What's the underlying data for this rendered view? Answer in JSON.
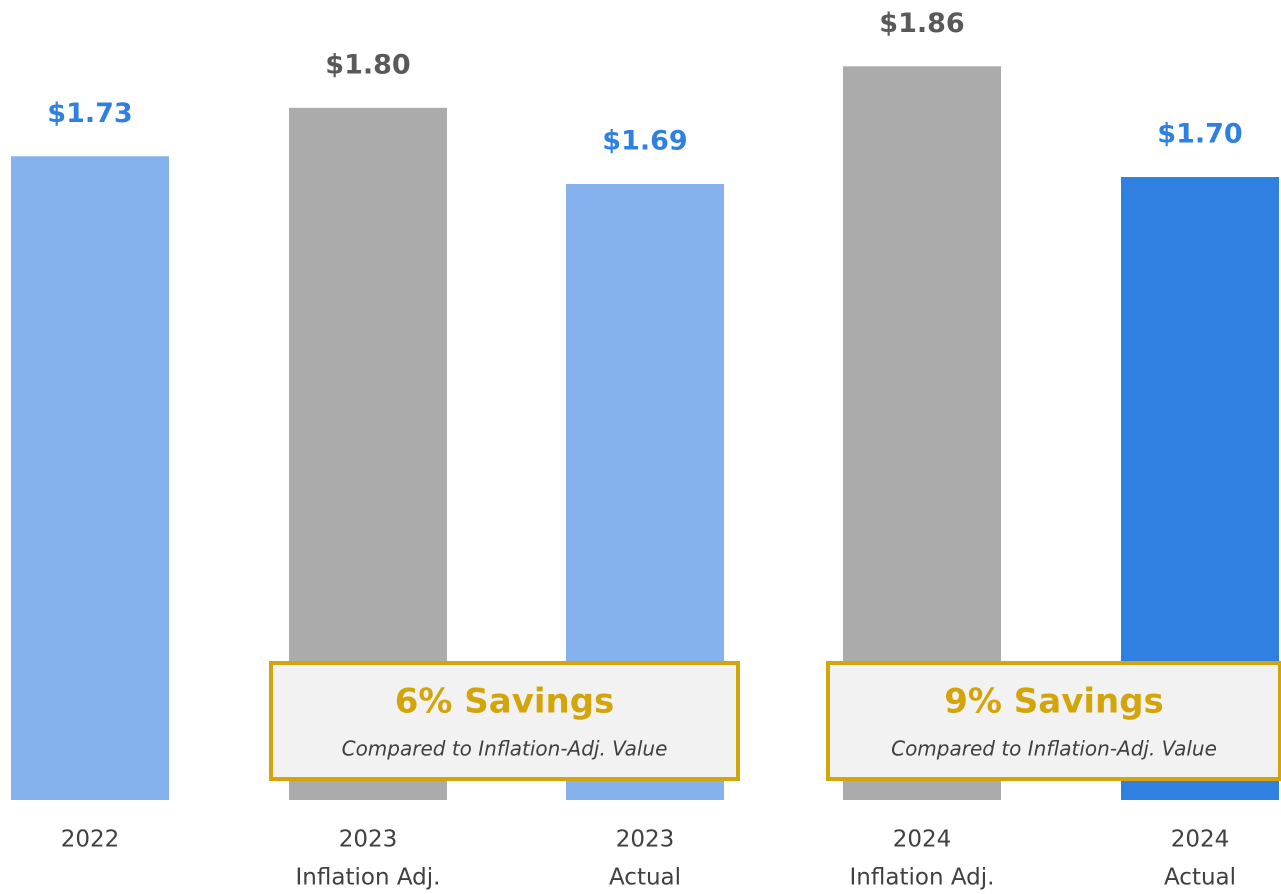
{
  "chart_data": {
    "type": "bar",
    "categories": [
      [
        "2022"
      ],
      [
        "2023",
        "Inflation Adj."
      ],
      [
        "2023",
        "Actual"
      ],
      [
        "2024",
        "Inflation Adj."
      ],
      [
        "2024",
        "Actual"
      ]
    ],
    "values": [
      1.73,
      1.8,
      1.69,
      1.86,
      1.7
    ],
    "value_labels": [
      "$1.73",
      "$1.80",
      "$1.69",
      "$1.86",
      "$1.70"
    ],
    "colors": [
      "#85b2ec",
      "#ababab",
      "#85b2ec",
      "#ababab",
      "#2f80e0"
    ],
    "label_colors": [
      "#2f80e0",
      "#595959",
      "#2f80e0",
      "#595959",
      "#2f80e0"
    ],
    "ylim": [
      0.8,
      1.95
    ],
    "annotations": [
      {
        "text": "6% Savings",
        "subtext": "Compared to Inflation-Adj. Value"
      },
      {
        "text": "9% Savings",
        "subtext": "Compared to Inflation-Adj. Value"
      }
    ]
  }
}
